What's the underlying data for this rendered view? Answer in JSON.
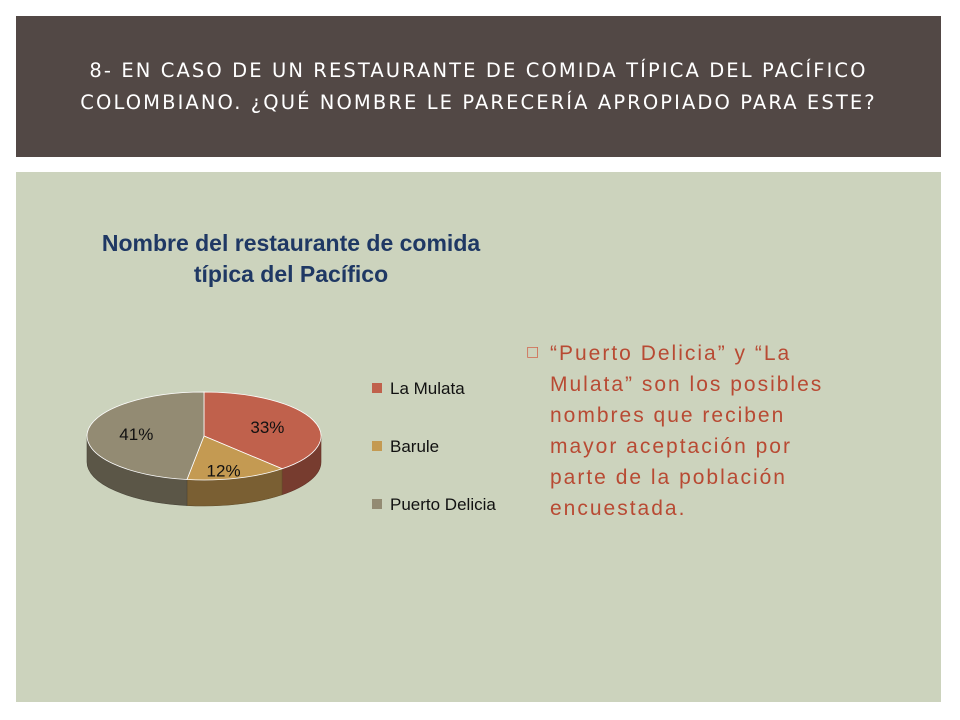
{
  "slide": {
    "title": "8- En caso de un restaurante de comida típica del Pacífico colombiano. ¿Qué nombre le parecería apropiado para este?",
    "bullet": {
      "icon": "square-bullet-icon",
      "text": "“Puerto Delicia” y “La Mulata” son los posibles nombres que reciben mayor aceptación por parte de la población encuestada."
    }
  },
  "chart_data": {
    "type": "pie",
    "title": "Nombre del restaurante de comida típica del Pacífico",
    "categories": [
      "La Mulata",
      "Barule",
      "Puerto Delicia"
    ],
    "values": [
      33,
      12,
      41
    ],
    "labels": [
      "33%",
      "12%",
      "41%"
    ],
    "colors": [
      "#c0614c",
      "#c49a52",
      "#938b73"
    ],
    "legend_position": "right",
    "style": "3d"
  }
}
